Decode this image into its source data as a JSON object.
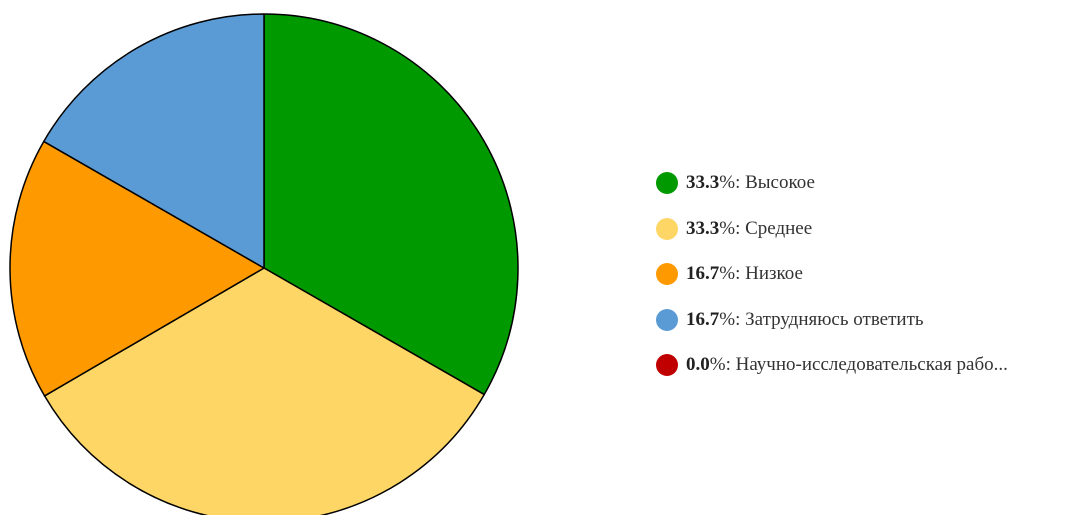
{
  "chart_data": {
    "type": "pie",
    "slices": [
      {
        "label": "Высокое",
        "value": 33.3,
        "display_value": "33.3",
        "color": "#009900"
      },
      {
        "label": "Среднее",
        "value": 33.3,
        "display_value": "33.3",
        "color": "#fdd666"
      },
      {
        "label": "Низкое",
        "value": 16.7,
        "display_value": "16.7",
        "color": "#ff9900"
      },
      {
        "label": "Затрудняюсь ответить",
        "value": 16.7,
        "display_value": "16.7",
        "color": "#5b9bd5"
      },
      {
        "label": "Научно-исследовательская рабо...",
        "value": 0.0,
        "display_value": "0.0",
        "color": "#c00000"
      }
    ],
    "percent_sign": "%",
    "separator": ": ",
    "legend_position": "right",
    "slice_order": "clockwise-from-top"
  }
}
